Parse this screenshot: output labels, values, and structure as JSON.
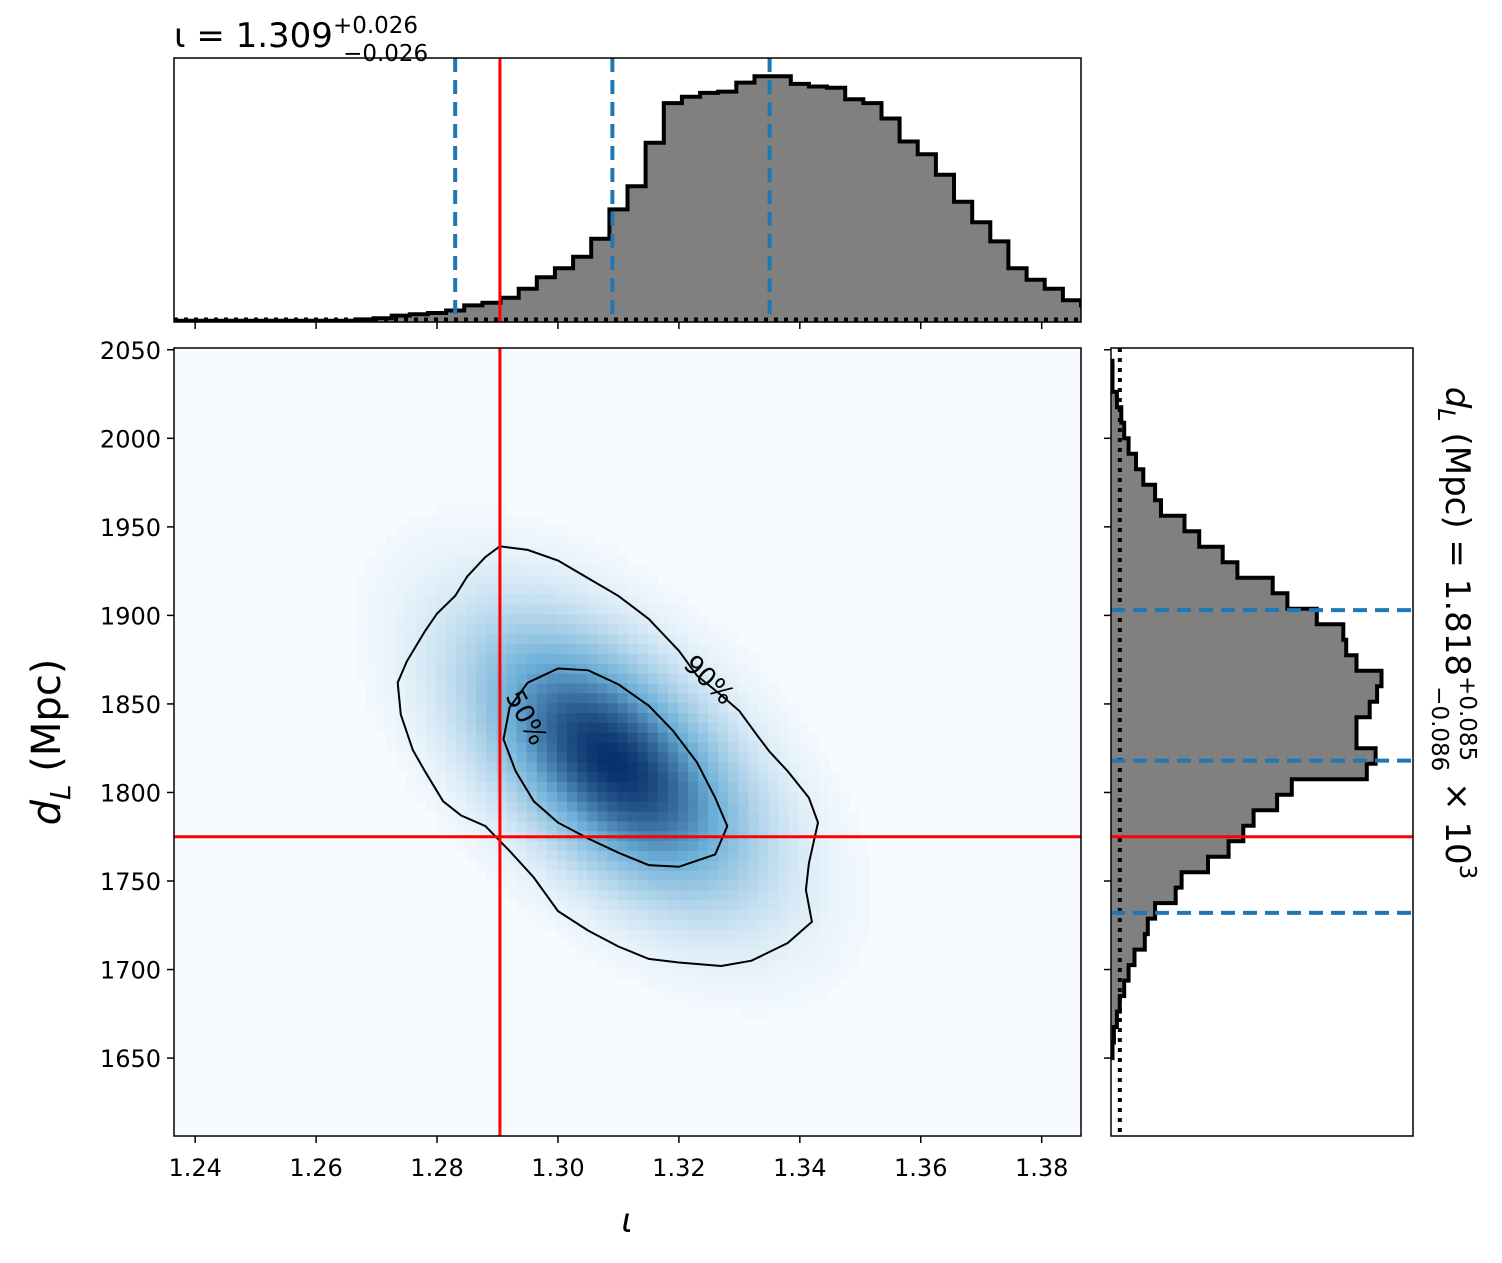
{
  "chart_data": [
    {
      "type": "heatmap",
      "panel": "joint",
      "xlabel": "ι",
      "ylabel_main": "d",
      "ylabel_sub": "L",
      "ylabel_unit": " (Mpc)",
      "xlim": [
        1.2365,
        1.3865
      ],
      "ylim": [
        1606,
        2051
      ],
      "x_ticks": [
        1.24,
        1.26,
        1.28,
        1.3,
        1.32,
        1.34,
        1.36,
        1.38
      ],
      "x_tick_labels": [
        "1.24",
        "1.26",
        "1.28",
        "1.30",
        "1.32",
        "1.34",
        "1.36",
        "1.38"
      ],
      "y_ticks": [
        1650,
        1700,
        1750,
        1800,
        1850,
        1900,
        1950,
        2000,
        2050
      ],
      "y_tick_labels": [
        "1650",
        "1700",
        "1750",
        "1800",
        "1850",
        "1900",
        "1950",
        "2000",
        "2050"
      ],
      "density": {
        "mean_x": 1.309,
        "mean_y": 1818,
        "sd_x": 0.0145,
        "sd_y": 48,
        "corr": -0.55
      },
      "injection": {
        "x": 1.2904,
        "y": 1775
      },
      "contours": [
        {
          "label": "90%",
          "points": [
            [
              1.2904,
              1939
            ],
            [
              1.295,
              1937
            ],
            [
              1.3,
              1931
            ],
            [
              1.305,
              1921
            ],
            [
              1.31,
              1911
            ],
            [
              1.315,
              1898
            ],
            [
              1.32,
              1880
            ],
            [
              1.323,
              1866
            ],
            [
              1.327,
              1855
            ],
            [
              1.33,
              1846
            ],
            [
              1.333,
              1832
            ],
            [
              1.335,
              1823
            ],
            [
              1.338,
              1812
            ],
            [
              1.3415,
              1797
            ],
            [
              1.343,
              1783
            ],
            [
              1.3415,
              1760
            ],
            [
              1.341,
              1745
            ],
            [
              1.342,
              1727
            ],
            [
              1.338,
              1715
            ],
            [
              1.332,
              1705
            ],
            [
              1.327,
              1702
            ],
            [
              1.32,
              1704
            ],
            [
              1.315,
              1706
            ],
            [
              1.31,
              1713
            ],
            [
              1.305,
              1722
            ],
            [
              1.3,
              1733
            ],
            [
              1.296,
              1752
            ],
            [
              1.292,
              1767
            ],
            [
              1.288,
              1781
            ],
            [
              1.284,
              1787
            ],
            [
              1.281,
              1795
            ],
            [
              1.278,
              1812
            ],
            [
              1.276,
              1824
            ],
            [
              1.274,
              1844
            ],
            [
              1.2735,
              1862
            ],
            [
              1.275,
              1874
            ],
            [
              1.278,
              1891
            ],
            [
              1.28,
              1901
            ],
            [
              1.283,
              1911
            ],
            [
              1.285,
              1922
            ],
            [
              1.288,
              1933
            ],
            [
              1.2904,
              1939
            ]
          ]
        },
        {
          "label": "50%",
          "points": [
            [
              1.295,
              1862
            ],
            [
              1.3,
              1870
            ],
            [
              1.305,
              1869
            ],
            [
              1.31,
              1861
            ],
            [
              1.315,
              1849
            ],
            [
              1.319,
              1835
            ],
            [
              1.323,
              1817
            ],
            [
              1.326,
              1797
            ],
            [
              1.328,
              1781
            ],
            [
              1.326,
              1765
            ],
            [
              1.32,
              1758
            ],
            [
              1.315,
              1759
            ],
            [
              1.31,
              1766
            ],
            [
              1.305,
              1774
            ],
            [
              1.3,
              1783
            ],
            [
              1.296,
              1795
            ],
            [
              1.293,
              1812
            ],
            [
              1.291,
              1830
            ],
            [
              1.292,
              1848
            ],
            [
              1.295,
              1862
            ]
          ]
        }
      ],
      "contour_labels": [
        "90%",
        "50%"
      ]
    },
    {
      "type": "bar",
      "panel": "top-marginal-histogram",
      "title_prefix": "ι = 1.309",
      "title_plus": "+0.026",
      "title_minus": "−0.026",
      "bin_edges_start": 1.2365,
      "bin_width": 0.003,
      "values": [
        0.005,
        0.005,
        0.005,
        0.005,
        0.005,
        0.005,
        0.005,
        0.005,
        0.005,
        0.005,
        0.01,
        0.015,
        0.025,
        0.03,
        0.035,
        0.045,
        0.065,
        0.075,
        0.095,
        0.13,
        0.175,
        0.21,
        0.255,
        0.325,
        0.44,
        0.53,
        0.7,
        0.855,
        0.88,
        0.895,
        0.9,
        0.935,
        0.96,
        0.96,
        0.93,
        0.92,
        0.915,
        0.87,
        0.855,
        0.795,
        0.705,
        0.655,
        0.575,
        0.47,
        0.39,
        0.315,
        0.21,
        0.165,
        0.13,
        0.085,
        0.065,
        0.04,
        0.035,
        0.015,
        0.015,
        0.01,
        0.005,
        0.005,
        0.005,
        0.005
      ],
      "ylim": [
        0,
        1.0
      ],
      "prior_level": 0.01,
      "x_ticks": [
        1.24,
        1.26,
        1.28,
        1.3,
        1.32,
        1.34,
        1.36,
        1.38
      ],
      "quantiles": [
        1.283,
        1.309,
        1.335
      ],
      "injection": 1.2904
    },
    {
      "type": "bar",
      "panel": "right-marginal-histogram",
      "orientation": "horizontal",
      "title_prefix": "d",
      "title_sub": "L",
      "title_unit": " (Mpc) = 1.818",
      "title_plus": "+0.085",
      "title_minus": "−0.086",
      "title_suffix": " × 10",
      "title_power": "3",
      "bin_edges_start": 1650,
      "bin_width": 8.75,
      "values": [
        0.005,
        0.01,
        0.02,
        0.03,
        0.045,
        0.06,
        0.08,
        0.115,
        0.125,
        0.15,
        0.22,
        0.24,
        0.33,
        0.4,
        0.45,
        0.485,
        0.565,
        0.615,
        0.87,
        0.9,
        0.835,
        0.835,
        0.88,
        0.905,
        0.92,
        0.835,
        0.8,
        0.79,
        0.7,
        0.6,
        0.55,
        0.43,
        0.38,
        0.3,
        0.25,
        0.17,
        0.15,
        0.11,
        0.085,
        0.06,
        0.045,
        0.035,
        0.02,
        0.005,
        0.005
      ],
      "xlim": [
        0,
        1.0
      ],
      "prior_level": 0.03,
      "quantiles": [
        1732,
        1818,
        1903
      ],
      "injection": 1775
    }
  ],
  "colors": {
    "hist_fill": "#808080",
    "hist_edge": "#000000",
    "quantile": "#1f77b4",
    "injection": "#ff0000",
    "contour": "#000000",
    "cmap_low": "#f7fbff",
    "cmap_mid": "#6baed6",
    "cmap_high": "#08306b"
  }
}
